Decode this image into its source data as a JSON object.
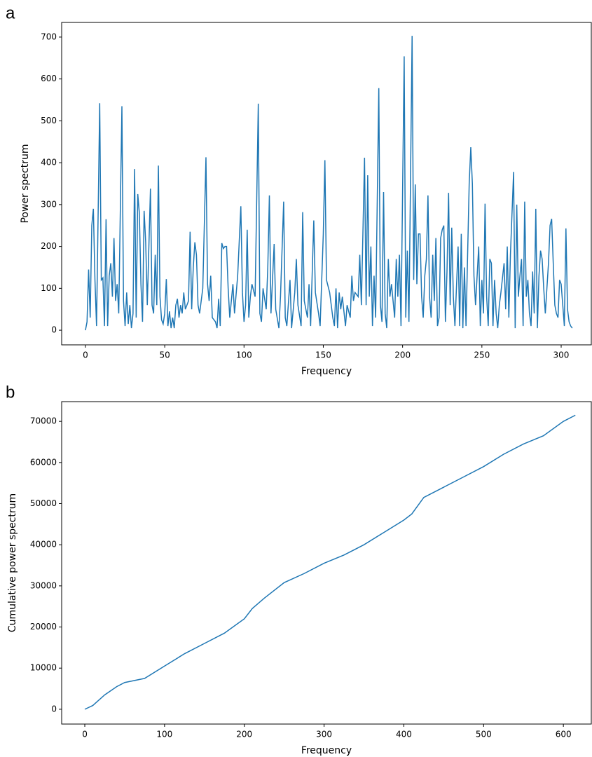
{
  "chart_data": [
    {
      "type": "line",
      "label": "a",
      "xlabel": "Frequency",
      "ylabel": "Power spectrum",
      "xlim": [
        -15,
        319
      ],
      "ylim": [
        -35,
        735
      ],
      "xticks": [
        0,
        50,
        100,
        150,
        200,
        250,
        300
      ],
      "yticks": [
        0,
        100,
        200,
        300,
        400,
        500,
        600,
        700
      ],
      "x": [
        0,
        1,
        2,
        3,
        4,
        5,
        6,
        7,
        9,
        10,
        11,
        12,
        13,
        14,
        15,
        16,
        17,
        18,
        19,
        20,
        21,
        23,
        24,
        25,
        26,
        27,
        28,
        29,
        30,
        31,
        32,
        33,
        34,
        35,
        36,
        37,
        38,
        39,
        41,
        42,
        43,
        44,
        45,
        46,
        47,
        48,
        49,
        50,
        51,
        52,
        53,
        54,
        55,
        56,
        57,
        58,
        59,
        60,
        61,
        62,
        63,
        65,
        66,
        67,
        68,
        69,
        70,
        71,
        72,
        74,
        76,
        77,
        78,
        79,
        80,
        82,
        83,
        84,
        85,
        86,
        87,
        88,
        89,
        90,
        91,
        93,
        94,
        96,
        98,
        99,
        100,
        101,
        102,
        103,
        104,
        105,
        107,
        109,
        110,
        111,
        112,
        114,
        115,
        116,
        117,
        119,
        120,
        122,
        123,
        125,
        126,
        127,
        129,
        130,
        132,
        133,
        134,
        136,
        137,
        138,
        140,
        141,
        142,
        144,
        145,
        147,
        148,
        150,
        151,
        152,
        154,
        156,
        157,
        158,
        159,
        160,
        161,
        162,
        164,
        165,
        167,
        168,
        169,
        170,
        172,
        173,
        174,
        176,
        177,
        178,
        179,
        180,
        181,
        182,
        183,
        185,
        186,
        187,
        188,
        189,
        190,
        191,
        192,
        193,
        195,
        196,
        197,
        198,
        199,
        201,
        202,
        203,
        204,
        206,
        207,
        208,
        209,
        210,
        211,
        212,
        213,
        214,
        215,
        216,
        217,
        218,
        219,
        220,
        221,
        222,
        223,
        224,
        225,
        226,
        227,
        228,
        229,
        230,
        231,
        232,
        233,
        235,
        236,
        237,
        238,
        239,
        240,
        242,
        243,
        244,
        245,
        246,
        248,
        249,
        250,
        251,
        252,
        253,
        254,
        255,
        256,
        257,
        258,
        259,
        260,
        261,
        262,
        264,
        265,
        266,
        267,
        268,
        270,
        271,
        272,
        273,
        274,
        275,
        276,
        277,
        278,
        279,
        280,
        281,
        282,
        283,
        284,
        285,
        286,
        287,
        288,
        289,
        290,
        292,
        293,
        294,
        295,
        296,
        297,
        298,
        299,
        300,
        301,
        302,
        303,
        304,
        305,
        306,
        307
      ],
      "series": [
        {
          "color": "#1f77b4",
          "values": [
            0,
            20,
            145,
            30,
            250,
            290,
            120,
            10,
            542,
            120,
            125,
            10,
            265,
            10,
            130,
            160,
            80,
            220,
            70,
            110,
            40,
            535,
            70,
            10,
            90,
            15,
            60,
            5,
            40,
            385,
            30,
            325,
            280,
            110,
            20,
            285,
            210,
            60,
            338,
            60,
            40,
            180,
            60,
            393,
            80,
            25,
            15,
            40,
            122,
            10,
            45,
            5,
            30,
            5,
            60,
            75,
            30,
            60,
            40,
            90,
            50,
            70,
            235,
            50,
            150,
            210,
            180,
            60,
            40,
            100,
            413,
            110,
            70,
            130,
            30,
            20,
            5,
            75,
            10,
            208,
            195,
            200,
            200,
            100,
            30,
            110,
            40,
            130,
            296,
            90,
            20,
            60,
            240,
            30,
            80,
            110,
            80,
            541,
            40,
            20,
            100,
            50,
            150,
            322,
            40,
            206,
            50,
            5,
            80,
            307,
            30,
            10,
            120,
            5,
            90,
            170,
            60,
            10,
            282,
            70,
            30,
            110,
            10,
            262,
            90,
            40,
            10,
            230,
            406,
            120,
            90,
            30,
            10,
            100,
            5,
            90,
            50,
            80,
            10,
            60,
            30,
            130,
            70,
            90,
            80,
            180,
            60,
            412,
            60,
            370,
            80,
            200,
            10,
            130,
            30,
            578,
            60,
            20,
            330,
            40,
            5,
            170,
            80,
            110,
            30,
            170,
            80,
            180,
            10,
            654,
            30,
            190,
            20,
            703,
            120,
            348,
            110,
            230,
            230,
            80,
            30,
            130,
            170,
            322,
            80,
            30,
            180,
            70,
            220,
            10,
            30,
            220,
            240,
            250,
            20,
            140,
            328,
            60,
            245,
            80,
            10,
            200,
            10,
            230,
            5,
            150,
            10,
            350,
            437,
            350,
            130,
            60,
            200,
            10,
            120,
            40,
            302,
            80,
            10,
            170,
            160,
            10,
            120,
            40,
            5,
            60,
            90,
            160,
            50,
            200,
            30,
            180,
            378,
            5,
            300,
            80,
            130,
            170,
            10,
            307,
            80,
            120,
            40,
            10,
            140,
            40,
            290,
            5,
            130,
            190,
            170,
            100,
            40,
            160,
            250,
            266,
            160,
            60,
            40,
            30,
            120,
            110,
            60,
            10,
            243,
            50,
            20,
            10,
            5
          ]
        }
      ]
    },
    {
      "type": "line",
      "label": "b",
      "xlabel": "Frequency",
      "ylabel": "Cumulative power spectrum",
      "xlim": [
        -29,
        635
      ],
      "ylim": [
        -3600,
        74800
      ],
      "xticks": [
        0,
        100,
        200,
        300,
        400,
        500,
        600
      ],
      "yticks": [
        0,
        10000,
        20000,
        30000,
        40000,
        50000,
        60000,
        70000
      ],
      "x": [
        0,
        10,
        25,
        40,
        50,
        75,
        100,
        125,
        150,
        175,
        200,
        210,
        225,
        250,
        275,
        300,
        325,
        350,
        375,
        400,
        410,
        425,
        450,
        475,
        500,
        525,
        550,
        575,
        600,
        615
      ],
      "series": [
        {
          "color": "#1f77b4",
          "values": [
            0,
            900,
            3500,
            5500,
            6500,
            7500,
            10500,
            13500,
            16000,
            18500,
            22000,
            24500,
            27000,
            30800,
            33000,
            35500,
            37500,
            40000,
            43000,
            46000,
            47500,
            51500,
            54000,
            56500,
            59000,
            62000,
            64500,
            66500,
            70000,
            71500
          ]
        }
      ]
    }
  ]
}
